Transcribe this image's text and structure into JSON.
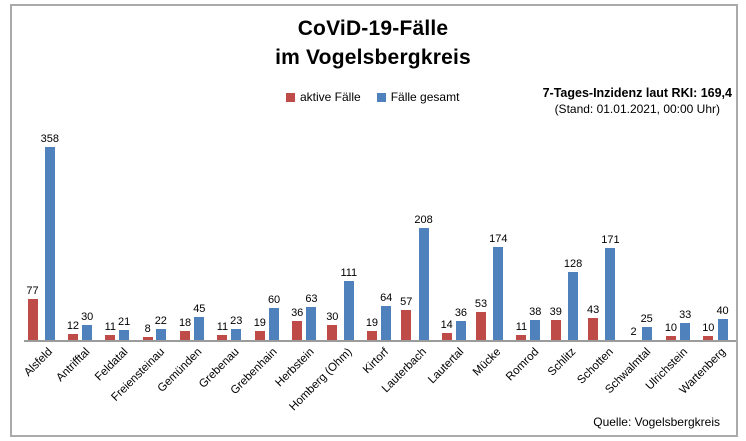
{
  "header": {
    "title_line1": "CoViD-19-Fälle",
    "title_line2": "im Vogelsbergkreis"
  },
  "legend": {
    "active_label": "aktive Fälle",
    "total_label": "Fälle gesamt"
  },
  "incidence": {
    "line1": "7-Tages-Inzidenz laut RKI: 169,4",
    "line2": "(Stand: 01.01.2021, 00:00 Uhr)"
  },
  "source": "Quelle: Vogelsbergkreis",
  "colors": {
    "active_bar": "#BE4B48",
    "total_bar": "#4F81BD",
    "axis_line": "#9B9B9B",
    "frame_border": "#AAAAAA",
    "text": "#000000"
  },
  "chart_data": {
    "type": "bar",
    "title": "CoViD-19-Fälle im Vogelsbergkreis",
    "xlabel": "",
    "ylabel": "",
    "ylim": [
      0,
      380
    ],
    "grid": false,
    "legend_position": "top",
    "value_labels": true,
    "categories": [
      "Alsfeld",
      "Antrifftal",
      "Feldatal",
      "Freiensteinau",
      "Gemünden",
      "Grebenau",
      "Grebenhain",
      "Herbstein",
      "Homberg (Ohm)",
      "Kirtorf",
      "Lauterbach",
      "Lautertal",
      "Mücke",
      "Romrod",
      "Schlitz",
      "Schotten",
      "Schwalmtal",
      "Ulrichstein",
      "Wartenberg"
    ],
    "series": [
      {
        "name": "aktive Fälle",
        "color": "#BE4B48",
        "values": [
          77,
          12,
          11,
          8,
          18,
          11,
          19,
          36,
          30,
          19,
          57,
          14,
          53,
          11,
          39,
          43,
          2,
          10,
          10
        ]
      },
      {
        "name": "Fälle gesamt",
        "color": "#4F81BD",
        "values": [
          358,
          30,
          21,
          22,
          45,
          23,
          60,
          63,
          111,
          64,
          208,
          36,
          174,
          38,
          128,
          171,
          25,
          33,
          40
        ]
      }
    ]
  }
}
